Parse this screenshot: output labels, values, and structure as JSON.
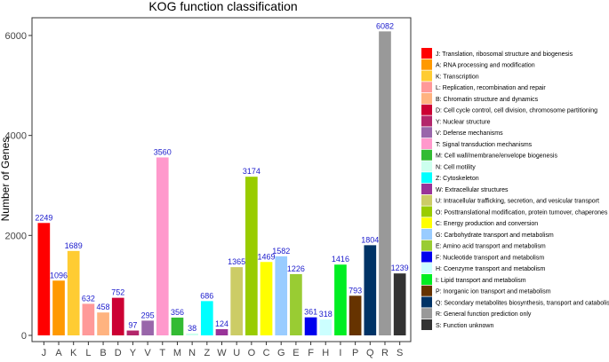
{
  "chart_data": {
    "type": "bar",
    "title": "KOG function classification",
    "xlabel": "",
    "ylabel": "Number of Genes",
    "ylim": [
      0,
      6300
    ],
    "yticks": [
      0,
      2000,
      4000,
      6000
    ],
    "grid": false,
    "legend_position": "right",
    "value_label_color": "#1a1acc",
    "categories": [
      "J",
      "A",
      "K",
      "L",
      "B",
      "D",
      "Y",
      "V",
      "T",
      "M",
      "N",
      "Z",
      "W",
      "U",
      "O",
      "C",
      "G",
      "E",
      "F",
      "H",
      "I",
      "P",
      "Q",
      "R",
      "S"
    ],
    "values": [
      2249,
      1096,
      1689,
      632,
      458,
      752,
      97,
      295,
      3560,
      356,
      38,
      686,
      124,
      1365,
      3174,
      1469,
      1582,
      1226,
      361,
      318,
      1416,
      793,
      1804,
      6082,
      1239
    ],
    "colors": [
      "#ff0000",
      "#ff9900",
      "#ffcc33",
      "#ff9999",
      "#ffb380",
      "#cc0033",
      "#b3266b",
      "#9966aa",
      "#ff99cc",
      "#33bb33",
      "#ccffee",
      "#00ffff",
      "#993399",
      "#cccc66",
      "#99cc00",
      "#ffff00",
      "#99ccff",
      "#99cc33",
      "#0000ee",
      "#ccffff",
      "#00ee22",
      "#663300",
      "#003366",
      "#999999",
      "#333333"
    ],
    "legend": [
      "J: Translation, ribosomal structure and biogenesis",
      "A: RNA processing and modification",
      "K: Transcription",
      "L: Replication, recombination and repair",
      "B: Chromatin structure and dynamics",
      "D: Cell cycle control, cell division, chromosome partitioning",
      "Y: Nuclear structure",
      "V: Defense mechanisms",
      "T: Signal transduction mechanisms",
      "M: Cell wall/membrane/envelope biogenesis",
      "N: Cell motility",
      "Z: Cytoskeleton",
      "W: Extracellular structures",
      "U: Intracellular trafficking, secretion, and vesicular transport",
      "O: Posttranslational modification, protein turnover, chaperones",
      "C: Energy production and conversion",
      "G: Carbohydrate transport and metabolism",
      "E: Amino acid transport and metabolism",
      "F: Nucleotide transport and metabolism",
      "H: Coenzyme transport and metabolism",
      "I: Lipid transport and metabolism",
      "P: Inorganic ion transport and metabolism",
      "Q: Secondary metabolites biosynthesis, transport and catabolism",
      "R: General function prediction only",
      "S: Function unknown"
    ]
  }
}
